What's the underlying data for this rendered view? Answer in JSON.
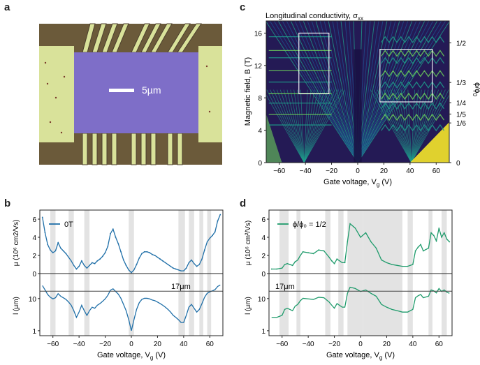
{
  "panel_labels": {
    "a": "a",
    "b": "b",
    "c": "c",
    "d": "d"
  },
  "panel_a": {
    "scale_bar_label": "5µm",
    "colors": {
      "substrate": "#6b5a3a",
      "channel": "#7e6ec8",
      "contact": "#d9e29a",
      "edge": "#4c3f2d"
    }
  },
  "panel_c": {
    "title": "Longitudinal conductivity, σ",
    "title_sub": "xx",
    "xlabel": "Gate voltage, V",
    "xlabel_sub": "g",
    "xlabel_unit": " (V)",
    "ylabel": "Magnetic field, B (T)",
    "right_label": "ϕ/ϕ",
    "right_label_sub": "0",
    "x_ticks": [
      "−60",
      "−40",
      "−20",
      "0",
      "20",
      "40",
      "60"
    ],
    "y_ticks": [
      "0",
      "4",
      "8",
      "12",
      "16"
    ],
    "right_ticks": [
      "1/2",
      "1/3",
      "1/4",
      "1/5",
      "1/6",
      "0"
    ],
    "colormap": [
      "#2b1a5a",
      "#1f4e8c",
      "#1f9a8a",
      "#6ccf5a",
      "#f5e52a"
    ]
  },
  "panel_b": {
    "legend": "0T",
    "xlabel": "Gate voltage, V",
    "xlabel_sub": "g",
    "xlabel_unit": " (V)",
    "ylabel_top": "μ (10⁶ cm2/Vs)",
    "ylabel_bottom": "l (μm)",
    "ref_label": "17μm",
    "x_ticks": [
      "−60",
      "−40",
      "−20",
      "0",
      "20",
      "40",
      "60"
    ],
    "y_ticks_top": [
      "0",
      "2",
      "4",
      "6"
    ],
    "y_ticks_bottom": [
      "1",
      "10"
    ],
    "color": "#1f6fa8"
  },
  "panel_d": {
    "legend": "ϕ/ϕ₀ = 1/2",
    "xlabel": "Gate voltage, V",
    "xlabel_sub": "g",
    "xlabel_unit": " (V)",
    "ylabel_top": "μ (10⁶ cm²/Vs)",
    "ylabel_bottom": "l (μm)",
    "ref_label": "17μm",
    "x_ticks": [
      "−60",
      "−40",
      "−20",
      "0",
      "20",
      "40",
      "60"
    ],
    "y_ticks_top": [
      "0",
      "2",
      "4",
      "6"
    ],
    "y_ticks_bottom": [
      "1",
      "10"
    ],
    "color": "#1e9b6b"
  },
  "chart_data": [
    {
      "type": "heatmap",
      "panel": "c",
      "title": "Longitudinal conductivity, σxx",
      "xlabel": "Gate voltage, Vg (V)",
      "ylabel": "Magnetic field, B (T)",
      "xlim": [
        -70,
        70
      ],
      "ylim": [
        0,
        17.5
      ],
      "secondary_y_ticks": [
        "1/2",
        "1/3",
        "1/4",
        "1/5",
        "1/6",
        "0"
      ],
      "highlight_boxes_V_B": [
        [
          -45,
          -22,
          8.5,
          16
        ],
        [
          17,
          57,
          7.5,
          14
        ]
      ]
    },
    {
      "type": "line",
      "panel": "b",
      "series": [
        {
          "name": "0T",
          "x": [
            -68,
            -66,
            -64,
            -62,
            -60,
            -58,
            -56,
            -54,
            -52,
            -50,
            -48,
            -46,
            -44,
            -42,
            -40,
            -38,
            -36,
            -34,
            -32,
            -30,
            -28,
            -26,
            -24,
            -22,
            -20,
            -18,
            -16,
            -14,
            -12,
            -10,
            -8,
            -6,
            -4,
            -2,
            0,
            2,
            4,
            6,
            8,
            10,
            12,
            14,
            16,
            18,
            20,
            22,
            24,
            26,
            28,
            30,
            32,
            34,
            36,
            38,
            40,
            42,
            44,
            46,
            48,
            50,
            52,
            54,
            56,
            58,
            60,
            62,
            64,
            66,
            68
          ],
          "mu": [
            6.2,
            4.5,
            3.2,
            2.6,
            2.3,
            2.5,
            3.4,
            2.8,
            2.5,
            2.2,
            1.8,
            1.4,
            0.9,
            0.5,
            0.8,
            1.4,
            0.9,
            0.6,
            0.9,
            1.2,
            1.1,
            1.4,
            1.6,
            1.9,
            2.3,
            3.0,
            4.4,
            4.9,
            4.0,
            3.3,
            2.4,
            1.5,
            0.9,
            0.4,
            0.1,
            0.4,
            1.0,
            1.7,
            2.2,
            2.4,
            2.4,
            2.3,
            2.1,
            2.0,
            1.8,
            1.6,
            1.4,
            1.2,
            1.0,
            0.8,
            0.6,
            0.5,
            0.4,
            0.3,
            0.3,
            0.6,
            1.2,
            1.5,
            1.1,
            0.8,
            1.0,
            1.6,
            2.6,
            3.5,
            3.9,
            4.2,
            4.6,
            5.8,
            6.5
          ]
        }
      ],
      "xlabel": "Gate voltage, Vg (V)",
      "ylabel_top": "μ (10⁶ cm2/Vs)",
      "ylabel_bottom": "l (μm)",
      "xlim": [
        -70,
        70
      ],
      "ylim_top": [
        0,
        7
      ],
      "ylim_bottom": [
        0.7,
        60
      ],
      "reference_line_um": 17,
      "shaded_bands_V": [
        [
          -62,
          -58
        ],
        [
          -48,
          -44
        ],
        [
          -36,
          -32
        ],
        [
          -2,
          2
        ],
        [
          36,
          41
        ],
        [
          44,
          48
        ],
        [
          52,
          55
        ],
        [
          58,
          61
        ]
      ]
    },
    {
      "type": "line",
      "panel": "d",
      "series": [
        {
          "name": "ϕ/ϕ₀ = 1/2",
          "x": [
            -68,
            -64,
            -60,
            -58,
            -56,
            -52,
            -50,
            -48,
            -46,
            -44,
            -40,
            -36,
            -32,
            -28,
            -24,
            -22,
            -20,
            -18,
            -14,
            -12,
            -10,
            -8,
            -4,
            0,
            4,
            8,
            12,
            16,
            20,
            24,
            28,
            32,
            36,
            40,
            42,
            44,
            46,
            48,
            52,
            54,
            56,
            58,
            60,
            62,
            64,
            66,
            68
          ],
          "mu": [
            0.5,
            0.5,
            0.6,
            1.0,
            1.1,
            0.9,
            1.3,
            1.5,
            2.0,
            2.4,
            2.3,
            2.2,
            2.6,
            2.5,
            1.8,
            1.4,
            1.1,
            1.6,
            1.2,
            1.2,
            3.5,
            5.5,
            5.0,
            4.0,
            4.5,
            3.5,
            2.8,
            1.5,
            1.2,
            1.0,
            0.9,
            0.8,
            0.8,
            1.0,
            2.5,
            2.9,
            3.2,
            2.5,
            2.8,
            4.5,
            4.2,
            3.6,
            5.0,
            4.0,
            4.5,
            3.8,
            3.5
          ]
        }
      ],
      "xlabel": "Gate voltage, Vg (V)",
      "ylabel_top": "μ (10⁶ cm²/Vs)",
      "ylabel_bottom": "l (μm)",
      "xlim": [
        -70,
        70
      ],
      "ylim_top": [
        0,
        7
      ],
      "ylim_bottom": [
        0.7,
        60
      ],
      "reference_line_um": 17,
      "shaded_bands_V": [
        [
          -62,
          -55
        ],
        [
          -49,
          -46
        ],
        [
          -27,
          -23
        ],
        [
          -17,
          -13
        ],
        [
          -10,
          2
        ],
        [
          2,
          32
        ],
        [
          36,
          40
        ],
        [
          52,
          55
        ],
        [
          62,
          66
        ]
      ]
    }
  ]
}
